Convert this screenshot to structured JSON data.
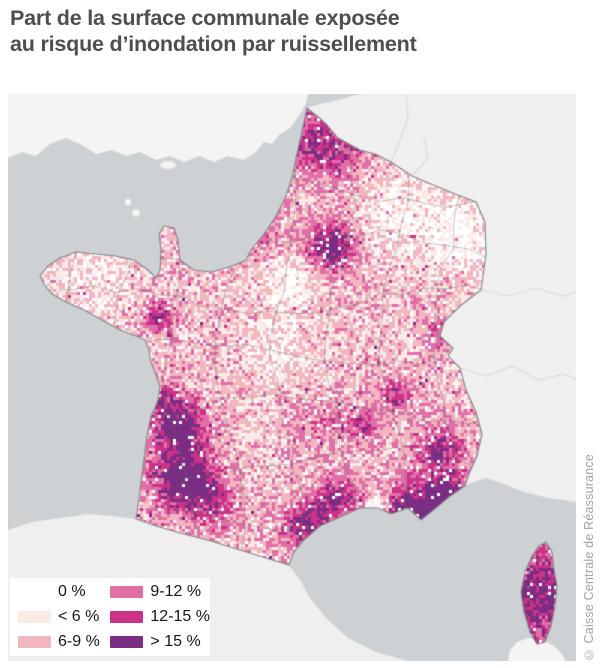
{
  "title": {
    "line1": "Part de la surface communale exposée",
    "line2": "au risque d’inondation par ruissellement"
  },
  "credit": "© Caisse Centrale de Réassurance",
  "legend": {
    "items": [
      {
        "label": "0 %",
        "color": "#ffffff"
      },
      {
        "label": "< 6 %",
        "color": "#fbeae6"
      },
      {
        "label": "6-9 %",
        "color": "#f2b6c1"
      },
      {
        "label": "9-12 %",
        "color": "#e06fa7"
      },
      {
        "label": "12-15 %",
        "color": "#cc3287"
      },
      {
        "label": "> 15 %",
        "color": "#7b2d83"
      }
    ]
  },
  "map": {
    "sea_color": "#cdd1d4",
    "neighbor_land_color": "#eeefee",
    "england_color": "#f4f5f3",
    "france_border_color": "#85898c",
    "dept_border_color": "#6e6e6e",
    "country_border_color": "#dadcdc"
  }
}
